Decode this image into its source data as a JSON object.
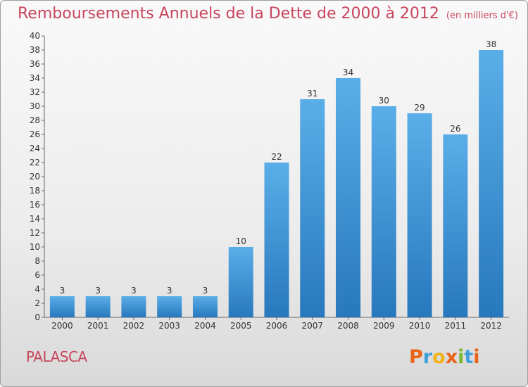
{
  "title": "Remboursements Annuels de la Dette de 2000 à 2012",
  "subtitle": "(en milliers d'€)",
  "commune": "PALASCA",
  "brand": {
    "name": "Proxiti",
    "colors": [
      "#e8641b",
      "#3f9fd8",
      "#f2b31b",
      "#e8641b",
      "#7ab82f",
      "#3f9fd8",
      "#e8641b"
    ]
  },
  "colors": {
    "title": "#c8455c",
    "bar_top": "#5aaee8",
    "bar_bottom": "#2878bd"
  },
  "chart_data": {
    "type": "bar",
    "title": "Remboursements Annuels de la Dette de 2000 à 2012",
    "categories": [
      "2000",
      "2001",
      "2002",
      "2003",
      "2004",
      "2005",
      "2006",
      "2007",
      "2008",
      "2009",
      "2010",
      "2011",
      "2012"
    ],
    "values": [
      3,
      3,
      3,
      3,
      3,
      10,
      22,
      31,
      34,
      30,
      29,
      26,
      38
    ],
    "ylim": [
      0,
      40
    ],
    "yticks": [
      0,
      2,
      4,
      6,
      8,
      10,
      12,
      14,
      16,
      18,
      20,
      22,
      24,
      26,
      28,
      30,
      32,
      34,
      36,
      38,
      40
    ],
    "grid": false,
    "data_labels": true
  }
}
